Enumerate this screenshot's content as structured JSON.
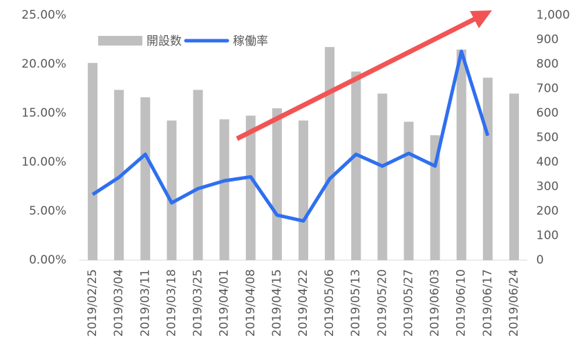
{
  "chart_data": {
    "type": "combo",
    "categories": [
      "2019/02/25",
      "2019/03/04",
      "2019/03/11",
      "2019/03/18",
      "2019/03/25",
      "2019/04/01",
      "2019/04/08",
      "2019/04/15",
      "2019/04/22",
      "2019/05/06",
      "2019/05/13",
      "2019/05/20",
      "2019/05/27",
      "2019/06/03",
      "2019/06/10",
      "2019/06/17",
      "2019/06/24"
    ],
    "series": [
      {
        "name": "開設数",
        "type": "bar",
        "axis": "y2",
        "color": "#bfbfbf",
        "values": [
          805,
          695,
          665,
          570,
          695,
          575,
          590,
          620,
          570,
          870,
          770,
          680,
          565,
          510,
          860,
          745,
          680
        ]
      },
      {
        "name": "稼働率",
        "type": "line",
        "color": "#2f6ff0",
        "values": [
          6.7,
          8.45,
          10.8,
          5.85,
          7.3,
          8.1,
          8.5,
          4.6,
          4.0,
          8.3,
          10.8,
          9.6,
          10.9,
          9.6,
          21.3,
          12.7,
          null
        ]
      }
    ],
    "ylim": [
      0,
      25
    ],
    "yticks": [
      {
        "value": 0,
        "label": "0.00%"
      },
      {
        "value": 5,
        "label": "5.00%"
      },
      {
        "value": 10,
        "label": "10.00%"
      },
      {
        "value": 15,
        "label": "15.00%"
      },
      {
        "value": 20,
        "label": "20.00%"
      },
      {
        "value": 25,
        "label": "25.00%"
      }
    ],
    "y2lim": [
      0,
      1000
    ],
    "y2ticks": [
      0,
      100,
      200,
      300,
      400,
      500,
      600,
      700,
      800,
      900,
      {
        "value": 1000,
        "label": "1,000"
      }
    ],
    "legend": "top-left"
  }
}
